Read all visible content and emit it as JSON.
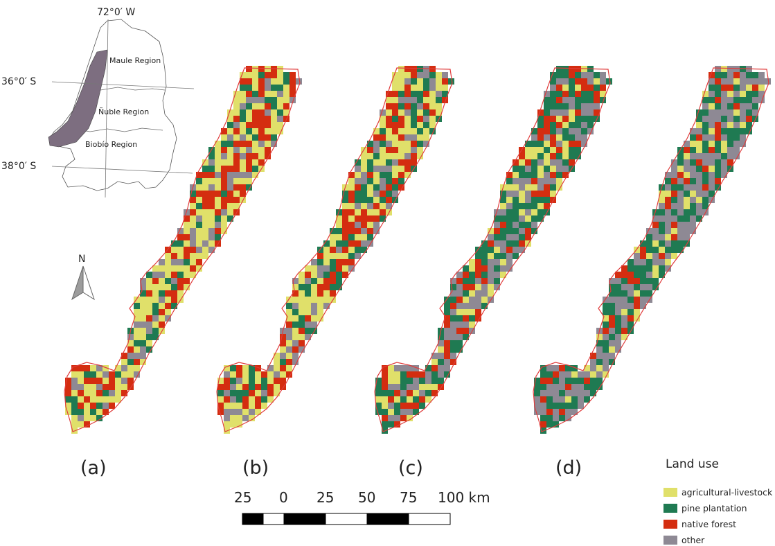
{
  "inset": {
    "lon_label": "72°0′ W",
    "lat_labels": [
      "36°0′ S",
      "38°0′ S"
    ],
    "regions": [
      "Maule Region",
      "Ñuble Region",
      "Biobío Region"
    ]
  },
  "north_arrow": {
    "label": "N"
  },
  "panels": [
    {
      "label": "(a)",
      "mix": {
        "agricultural-livestock": 0.42,
        "pine plantation": 0.16,
        "native forest": 0.27,
        "other": 0.15
      }
    },
    {
      "label": "(b)",
      "mix": {
        "agricultural-livestock": 0.38,
        "pine plantation": 0.2,
        "native forest": 0.25,
        "other": 0.17
      }
    },
    {
      "label": "(c)",
      "mix": {
        "agricultural-livestock": 0.2,
        "pine plantation": 0.34,
        "native forest": 0.2,
        "other": 0.26
      }
    },
    {
      "label": "(d)",
      "mix": {
        "agricultural-livestock": 0.12,
        "pine plantation": 0.36,
        "native forest": 0.14,
        "other": 0.38
      }
    }
  ],
  "legend": {
    "title": "Land use",
    "items": [
      {
        "label": "agricultural-livestock",
        "color": "#e0e06a"
      },
      {
        "label": "pine plantation",
        "color": "#1f7a52"
      },
      {
        "label": "native forest",
        "color": "#d42d10"
      },
      {
        "label": "other",
        "color": "#8e8994"
      }
    ]
  },
  "boundary_color": "#e03c3c",
  "study_area_color": "#7d6e80",
  "scale_bar": {
    "ticks": [
      "25",
      "0",
      "25",
      "50",
      "75"
    ],
    "last": "100 km"
  }
}
